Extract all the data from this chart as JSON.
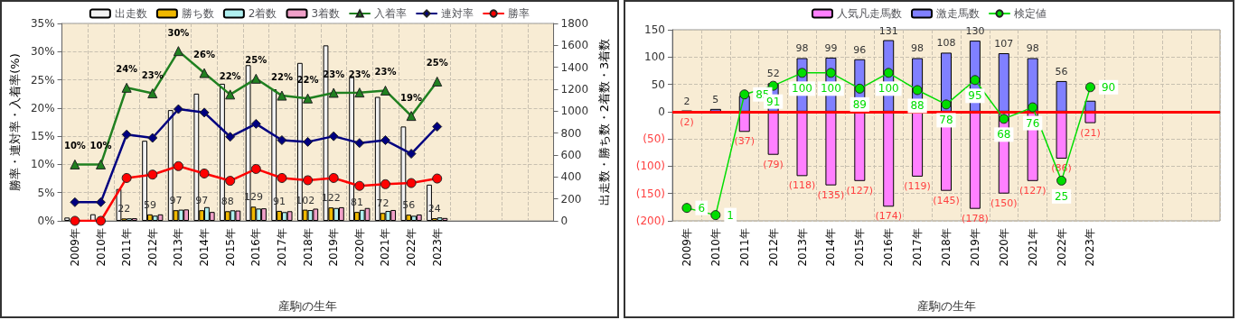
{
  "chart_data": [
    {
      "type": "bar",
      "xlabel": "産駒の生年",
      "ylabel": "勝率・連対率・入着率(%)",
      "y2label": "出走数・勝ち数・2着数・3着数",
      "legend": "top",
      "grid": true,
      "categories": [
        "2009年",
        "2010年",
        "2011年",
        "2012年",
        "2013年",
        "2014年",
        "2015年",
        "2016年",
        "2017年",
        "2018年",
        "2019年",
        "2020年",
        "2021年",
        "2022年",
        "2023年",
        null,
        null,
        null,
        null
      ],
      "ylim": [
        0,
        35
      ],
      "yticks": [
        {
          "value": 0,
          "label": "0%"
        },
        {
          "value": 5,
          "label": "5%"
        },
        {
          "value": 10,
          "label": "10%"
        },
        {
          "value": 15,
          "label": "15%"
        },
        {
          "value": 20,
          "label": "20%"
        },
        {
          "value": 25,
          "label": "25%"
        },
        {
          "value": 30,
          "label": "30%"
        },
        {
          "value": 35,
          "label": "35%"
        }
      ],
      "y2lim": [
        0,
        1800
      ],
      "y2ticks": [
        0,
        200,
        400,
        600,
        800,
        1000,
        1200,
        1400,
        1600,
        1800
      ],
      "series": [
        {
          "name": "出走数",
          "type": "bar",
          "axis": "y2",
          "color": "#f2f2f2",
          "values": [
            30,
            60,
            290,
            730,
            1010,
            1160,
            1250,
            1420,
            1200,
            1440,
            1600,
            1310,
            1130,
            860,
            330,
            null,
            null,
            null,
            null
          ]
        },
        {
          "name": "勝ち数",
          "type": "bar",
          "axis": "y2",
          "color": "#f0b800",
          "values": [
            0,
            0,
            22,
            59,
            97,
            97,
            88,
            129,
            91,
            102,
            122,
            81,
            72,
            56,
            24,
            null,
            null,
            null,
            null
          ],
          "value_labels": [
            null,
            null,
            "22",
            "59",
            "97",
            "97",
            "88",
            "129",
            "91",
            "102",
            "122",
            "81",
            "72",
            "56",
            "24",
            null,
            null,
            null,
            null
          ]
        },
        {
          "name": "2着数",
          "type": "bar",
          "axis": "y2",
          "color": "#b0f0f0",
          "values": [
            null,
            null,
            23,
            47,
            102,
            125,
            96,
            112,
            80,
            98,
            117,
            100,
            90,
            46,
            31,
            null,
            null,
            null,
            null
          ]
        },
        {
          "name": "3着数",
          "type": "bar",
          "axis": "y2",
          "color": "#f0a0c8",
          "values": [
            null,
            null,
            24,
            59,
            104,
            81,
            94,
            114,
            88,
            111,
            124,
            117,
            99,
            58,
            26,
            null,
            null,
            null,
            null
          ]
        },
        {
          "name": "入着率",
          "type": "line",
          "axis": "y",
          "marker": "triangle",
          "color": "#208020",
          "values": [
            10,
            10,
            23.6,
            22.6,
            30.1,
            26.2,
            22.4,
            25.2,
            22.2,
            21.7,
            22.7,
            22.75,
            23.1,
            18.6,
            24.7,
            null,
            null,
            null,
            null
          ],
          "value_labels": [
            "10%",
            "10%",
            "24%",
            "23%",
            "30%",
            "26%",
            "22%",
            "25%",
            "22%",
            "22%",
            "23%",
            "23%",
            "23%",
            "19%",
            "25%",
            null,
            null,
            null,
            null
          ]
        },
        {
          "name": "連対率",
          "type": "line",
          "axis": "y",
          "marker": "diamond",
          "color": "#000080",
          "values": [
            3.3,
            3.3,
            15.3,
            14.7,
            19.8,
            19.2,
            14.9,
            17.2,
            14.3,
            14.0,
            15.0,
            13.8,
            14.3,
            11.9,
            16.7,
            null,
            null,
            null,
            null
          ]
        },
        {
          "name": "勝率",
          "type": "line",
          "axis": "y",
          "marker": "circle",
          "color": "#ff0000",
          "values": [
            0,
            0,
            7.6,
            8.2,
            9.7,
            8.4,
            7.1,
            9.2,
            7.6,
            7.2,
            7.6,
            6.2,
            6.5,
            6.7,
            7.5,
            null,
            null,
            null,
            null
          ]
        }
      ]
    },
    {
      "type": "bar",
      "stacked": true,
      "xlabel": "産駒の生年",
      "legend": "top",
      "grid": true,
      "categories": [
        "2009年",
        "2010年",
        "2011年",
        "2012年",
        "2013年",
        "2014年",
        "2015年",
        "2016年",
        "2017年",
        "2018年",
        "2019年",
        "2020年",
        "2021年",
        "2022年",
        "2023年",
        null,
        null,
        null,
        null
      ],
      "ylim": [
        -200,
        150
      ],
      "yticks": [
        {
          "value": -200,
          "label": "(200)"
        },
        {
          "value": -150,
          "label": "(150)"
        },
        {
          "value": -100,
          "label": "(100)"
        },
        {
          "value": -50,
          "label": "(50)"
        },
        0,
        50,
        100,
        150
      ],
      "y2lim": [
        -3,
        130
      ],
      "ref_lines": [
        {
          "axis": "y",
          "value": 0,
          "color": "#ff0000"
        }
      ],
      "series": [
        {
          "name": "人気凡走馬数",
          "type": "bar",
          "color": "#ff80ff",
          "values": [
            -2,
            0,
            -37,
            -79,
            -118,
            -135,
            -127,
            -174,
            -119,
            -145,
            -178,
            -150,
            -127,
            -86,
            -21,
            null,
            null,
            null,
            null
          ],
          "value_labels": [
            "(2)",
            null,
            "(37)",
            "(79)",
            "(118)",
            "(135)",
            "(127)",
            "(174)",
            "(119)",
            "(145)",
            "(178)",
            "(150)",
            "(127)",
            "(86)",
            "(21)",
            null,
            null,
            null,
            null
          ]
        },
        {
          "name": "激走馬数",
          "type": "bar",
          "color": "#8080ff",
          "values": [
            2,
            5,
            29,
            52,
            98,
            99,
            96,
            131,
            98,
            108,
            130,
            107,
            98,
            56,
            20,
            null,
            null,
            null,
            null
          ],
          "value_labels": [
            "2",
            "5",
            null,
            "52",
            "98",
            "99",
            "96",
            "131",
            "98",
            "108",
            "130",
            "107",
            "98",
            "56",
            null,
            null,
            null,
            null,
            null
          ]
        },
        {
          "name": "検定値",
          "type": "line",
          "axis": "y2",
          "marker": "circle",
          "color": "#00dd00",
          "values": [
            6,
            1,
            85,
            91,
            100,
            100,
            89,
            100,
            88,
            78,
            95,
            68,
            76,
            25,
            90,
            null,
            null,
            null,
            null
          ],
          "value_labels": [
            "6",
            "1",
            "85",
            "91",
            "100",
            "100",
            "89",
            "100",
            "88",
            "78",
            "95",
            "68",
            "76",
            "25",
            "90",
            null,
            null,
            null,
            null
          ]
        }
      ]
    }
  ]
}
